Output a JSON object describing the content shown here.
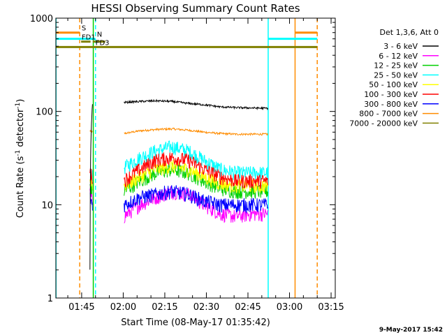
{
  "chart_data": {
    "type": "line",
    "title": "HESSI Observing Summary Count Rates",
    "xlabel": "Start Time (08-May-17 01:35:42)",
    "ylabel_main": "Count Rate (s",
    "ylabel_sup1": "-1",
    "ylabel_mid": " detector",
    "ylabel_sup2": "-1",
    "ylabel_end": ")",
    "footer_date": "9-May-2017 15:42",
    "x_ticks": [
      "01:45",
      "02:00",
      "02:15",
      "02:30",
      "02:45",
      "03:00",
      "03:15"
    ],
    "x_tick_minutes": [
      105,
      120,
      135,
      150,
      165,
      180,
      195
    ],
    "x_range_minutes": [
      95.7,
      196.5
    ],
    "y_scale": "log",
    "ylim": [
      1,
      1000
    ],
    "y_ticks": [
      "1",
      "10",
      "100",
      "1000"
    ],
    "y_tick_values": [
      1,
      10,
      100,
      1000
    ],
    "legend_title": "Det 1,3,6, Att 0",
    "series": [
      {
        "name": "3 - 6 keV",
        "color": "#000000",
        "early": [
          0,
          120
        ],
        "level": [
          125,
          128,
          130,
          128,
          122,
          118,
          112,
          110,
          109,
          108
        ]
      },
      {
        "name": "6 - 12 keV",
        "color": "#ff00ff",
        "early": [
          13,
          11
        ],
        "level": [
          7.5,
          10,
          12,
          14,
          13,
          10,
          8,
          7.5,
          8,
          8
        ]
      },
      {
        "name": "12 - 25 keV",
        "color": "#00d000",
        "early": [
          16,
          14
        ],
        "level": [
          14,
          18,
          22,
          24,
          22,
          18,
          15,
          14,
          14,
          14
        ]
      },
      {
        "name": "25 - 50 keV",
        "color": "#00ffff",
        "early": [
          22,
          20
        ],
        "level": [
          25,
          32,
          38,
          42,
          38,
          30,
          24,
          22,
          22,
          22
        ]
      },
      {
        "name": "50 - 100 keV",
        "color": "#ffff00",
        "early": [
          19,
          17
        ],
        "level": [
          16,
          20,
          24,
          26,
          24,
          20,
          17,
          16,
          16,
          16
        ]
      },
      {
        "name": "100 - 300 keV",
        "color": "#ff0000",
        "early": [
          22,
          20
        ],
        "level": [
          18,
          24,
          30,
          32,
          30,
          24,
          20,
          18,
          18,
          18
        ]
      },
      {
        "name": "300 - 800 keV",
        "color": "#0000ff",
        "early": [
          12,
          10
        ],
        "level": [
          10,
          12,
          13,
          14,
          13,
          11,
          10,
          10,
          10,
          10
        ]
      },
      {
        "name": "800 - 7000 keV",
        "color": "#ff8c00",
        "early": [
          62,
          60
        ],
        "level": [
          58,
          62,
          64,
          65,
          63,
          60,
          58,
          57,
          57,
          57
        ]
      },
      {
        "name": "7000 - 20000 keV",
        "color": "#808000",
        "early": [],
        "level": []
      }
    ],
    "time_windows": {
      "early": [
        108.0,
        108.9
      ],
      "main": [
        120.3,
        172.2
      ]
    },
    "vertical_markers": [
      {
        "minute": 95.75,
        "color": "#00ffff",
        "style": "solid"
      },
      {
        "minute": 104.3,
        "color": "#ff8c00",
        "style": "dashed"
      },
      {
        "minute": 109.2,
        "color": "#00d000",
        "style": "solid"
      },
      {
        "minute": 110.0,
        "color": "#00ffff",
        "style": "dashed"
      },
      {
        "minute": 172.3,
        "color": "#00ffff",
        "style": "solid"
      },
      {
        "minute": 182.0,
        "color": "#ff8c00",
        "style": "solid"
      },
      {
        "minute": 190.0,
        "color": "#ff8c00",
        "style": "dashed"
      }
    ],
    "flag_bars": [
      {
        "label": "S",
        "color": "#ff8c00",
        "level": 700,
        "segments": [
          [
            95.8,
            104.3
          ],
          [
            182.0,
            190.0
          ]
        ],
        "label_at": 105.0
      },
      {
        "label": "N",
        "color": "#00ffff",
        "level": 600,
        "segments": [
          [
            95.8,
            110.0
          ],
          [
            172.3,
            190.0
          ]
        ],
        "label_at": 110.5
      },
      {
        "label": "FD1",
        "color": "#808000",
        "level": 560,
        "segments": [
          [
            104.8,
            108.2
          ],
          [
            109.0,
            113.5
          ]
        ],
        "label_at": 105.0
      },
      {
        "label": "FD3",
        "color": "#808000",
        "level": 490,
        "segments": [
          [
            95.8,
            190.0
          ]
        ],
        "label_at": 110.0
      }
    ]
  }
}
